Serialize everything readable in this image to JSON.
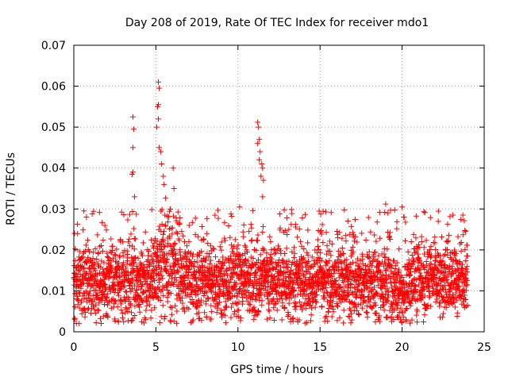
{
  "chart_data": {
    "type": "scatter",
    "title": "Day 208 of 2019, Rate Of TEC Index for receiver mdo1",
    "xlabel": "GPS time / hours",
    "ylabel": "ROTI / TECUs",
    "xlim": [
      0,
      25
    ],
    "ylim": [
      0,
      0.07
    ],
    "x_ticks": [
      "0",
      "5",
      "10",
      "15",
      "20",
      "25"
    ],
    "y_ticks": [
      "0",
      "0.01",
      "0.02",
      "0.03",
      "0.04",
      "0.05",
      "0.06",
      "0.07"
    ],
    "grid": true,
    "marker": "+",
    "series_color": "#ff0000",
    "data_range": [
      0,
      24
    ],
    "baseline": {
      "typical_low": 0.004,
      "typical_high": 0.022,
      "peak_cluster_values": [
        0.025,
        0.028,
        0.03,
        0.032
      ]
    },
    "notable_points": [
      {
        "x": 3.6,
        "y": 0.0525
      },
      {
        "x": 3.65,
        "y": 0.0495
      },
      {
        "x": 3.6,
        "y": 0.045
      },
      {
        "x": 3.6,
        "y": 0.039
      },
      {
        "x": 3.55,
        "y": 0.0385
      },
      {
        "x": 3.7,
        "y": 0.033
      },
      {
        "x": 5.15,
        "y": 0.061
      },
      {
        "x": 5.2,
        "y": 0.0595
      },
      {
        "x": 5.15,
        "y": 0.0555
      },
      {
        "x": 5.1,
        "y": 0.055
      },
      {
        "x": 5.15,
        "y": 0.052
      },
      {
        "x": 5.05,
        "y": 0.05
      },
      {
        "x": 5.2,
        "y": 0.045
      },
      {
        "x": 5.3,
        "y": 0.044
      },
      {
        "x": 5.35,
        "y": 0.041
      },
      {
        "x": 5.45,
        "y": 0.038
      },
      {
        "x": 5.5,
        "y": 0.036
      },
      {
        "x": 6.05,
        "y": 0.04
      },
      {
        "x": 6.1,
        "y": 0.035
      },
      {
        "x": 11.2,
        "y": 0.0512
      },
      {
        "x": 11.25,
        "y": 0.05
      },
      {
        "x": 11.3,
        "y": 0.047
      },
      {
        "x": 11.2,
        "y": 0.046
      },
      {
        "x": 11.35,
        "y": 0.044
      },
      {
        "x": 11.3,
        "y": 0.042
      },
      {
        "x": 11.45,
        "y": 0.041
      },
      {
        "x": 11.5,
        "y": 0.04
      },
      {
        "x": 11.4,
        "y": 0.038
      },
      {
        "x": 11.55,
        "y": 0.037
      },
      {
        "x": 11.5,
        "y": 0.033
      },
      {
        "x": 10.1,
        "y": 0.0305
      },
      {
        "x": 19.0,
        "y": 0.0312
      },
      {
        "x": 20.0,
        "y": 0.0305
      },
      {
        "x": 20.1,
        "y": 0.028
      },
      {
        "x": 23.7,
        "y": 0.0285
      }
    ]
  }
}
